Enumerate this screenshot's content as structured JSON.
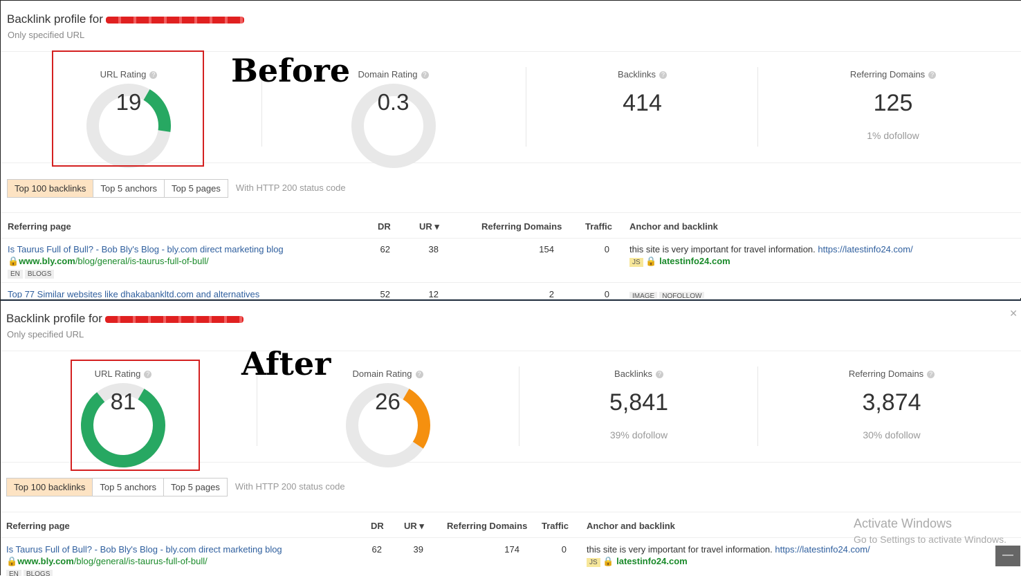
{
  "labels": {
    "before": "Before",
    "after": "After",
    "only": "Only specified URL",
    "title": "Backlink profile for",
    "url_rating": "URL Rating",
    "domain_rating": "Domain Rating",
    "backlinks": "Backlinks",
    "ref_domains": "Referring Domains",
    "help": "?"
  },
  "tabs": [
    "Top 100 backlinks",
    "Top 5 anchors",
    "Top 5 pages"
  ],
  "tab_note": "With HTTP 200 status code",
  "columns": [
    "Referring page",
    "DR",
    "UR ▾",
    "Referring Domains",
    "Traffic",
    "Anchor and backlink"
  ],
  "before": {
    "ur": 19,
    "dr": 0.3,
    "ur_text": "19",
    "dr_text": "0.3",
    "backlinks": "414",
    "ref_domains": "125",
    "ref_dofollow": "1% dofollow",
    "rows": [
      {
        "title": "Is Taurus Full of Bull? - Bob Bly's Blog - bly.com direct marketing blog",
        "url_host": "www.bly.com",
        "url_path": "/blog/general/is-taurus-full-of-bull/",
        "tags": [
          "EN",
          "BLOGS"
        ],
        "dr": "62",
        "ur": "38",
        "rd": "154",
        "traffic": "0",
        "anchor": "this site is very important for travel information.",
        "anchor_link": "https://latestinfo24.com/",
        "js": "JS",
        "target": "latestinfo24.com"
      },
      {
        "title": "Top 77 Similar websites like dhakabankltd.com and alternatives",
        "dr": "52",
        "ur": "12",
        "rd": "2",
        "traffic": "0",
        "tags": [
          "IMAGE",
          "NOFOLLOW"
        ]
      }
    ]
  },
  "after": {
    "ur": 81,
    "dr": 26,
    "ur_text": "81",
    "dr_text": "26",
    "backlinks": "5,841",
    "backlinks_dofollow": "39% dofollow",
    "ref_domains": "3,874",
    "ref_dofollow": "30% dofollow",
    "rows": [
      {
        "title": "Is Taurus Full of Bull? - Bob Bly's Blog - bly.com direct marketing blog",
        "url_host": "www.bly.com",
        "url_path": "/blog/general/is-taurus-full-of-bull/",
        "tags": [
          "EN",
          "BLOGS"
        ],
        "dr": "62",
        "ur": "39",
        "rd": "174",
        "traffic": "0",
        "anchor": "this site is very important for travel information.",
        "anchor_link": "https://latestinfo24.com/",
        "js": "JS",
        "target": "latestinfo24.com"
      }
    ]
  },
  "windows": {
    "line1": "Activate Windows",
    "line2": "Go to Settings to activate Windows."
  },
  "colors": {
    "green": "#27a862",
    "orange": "#f5900f",
    "grey": "#e8e8e8"
  }
}
